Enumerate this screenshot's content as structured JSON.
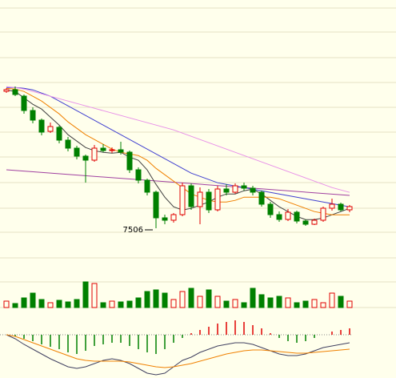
{
  "chart_data": [
    {
      "type": "candlestick",
      "ylim": [
        7431,
        8931
      ],
      "up_color": "#e00000",
      "down_color": "#008000",
      "open": [
        8361,
        8371,
        8331,
        8241,
        8181,
        8111,
        8136,
        8056,
        8006,
        7956,
        7931,
        8006,
        7991,
        7996,
        7981,
        7871,
        7806,
        7731,
        7571,
        7556,
        7591,
        7771,
        7641,
        7731,
        7621,
        7751,
        7731,
        7771,
        7756,
        7731,
        7656,
        7591,
        7561,
        7606,
        7551,
        7531,
        7556,
        7631,
        7656,
        7621
      ],
      "high": [
        8381,
        8391,
        8341,
        8261,
        8191,
        8166,
        8146,
        8076,
        8021,
        7966,
        8026,
        8031,
        8011,
        8046,
        7991,
        7886,
        7816,
        7741,
        7591,
        7601,
        7791,
        7786,
        7761,
        7751,
        7771,
        7781,
        7786,
        7791,
        7771,
        7741,
        7671,
        7611,
        7626,
        7616,
        7561,
        7566,
        7641,
        7691,
        7666,
        7651
      ],
      "low": [
        8351,
        8331,
        8221,
        8161,
        8086,
        8101,
        8036,
        7986,
        7936,
        7791,
        7921,
        7981,
        7976,
        7966,
        7851,
        7786,
        7711,
        7506,
        7531,
        7541,
        7581,
        7621,
        7531,
        7601,
        7611,
        7711,
        7721,
        7741,
        7711,
        7641,
        7571,
        7546,
        7551,
        7536,
        7521,
        7526,
        7546,
        7616,
        7611,
        7606
      ],
      "close": [
        8371,
        8341,
        8241,
        8181,
        8106,
        8141,
        8056,
        8006,
        7956,
        7931,
        8006,
        7991,
        7996,
        7981,
        7871,
        7806,
        7731,
        7571,
        7556,
        7591,
        7771,
        7641,
        7731,
        7621,
        7751,
        7731,
        7771,
        7756,
        7731,
        7656,
        7591,
        7561,
        7606,
        7551,
        7531,
        7556,
        7631,
        7656,
        7621,
        7641
      ],
      "lines": [
        {
          "color": "#404040",
          "values": [
            8370,
            8360,
            8320,
            8280,
            8250,
            8200,
            8150,
            8090,
            8050,
            8010,
            7990,
            7980,
            7975,
            7980,
            7950,
            7930,
            7870,
            7780,
            7700,
            7640,
            7620,
            7630,
            7650,
            7670,
            7700,
            7720,
            7720,
            7740,
            7750,
            7720,
            7680,
            7640,
            7610,
            7580,
            7560,
            7560,
            7570,
            7590,
            7610,
            7630
          ]
        },
        {
          "color": "#f08000",
          "values": [
            8380,
            8375,
            8360,
            8330,
            8300,
            8260,
            8220,
            8170,
            8130,
            8090,
            8060,
            8030,
            8000,
            7980,
            7970,
            7960,
            7930,
            7880,
            7840,
            7800,
            7760,
            7720,
            7700,
            7680,
            7670,
            7670,
            7680,
            7700,
            7700,
            7700,
            7700,
            7690,
            7670,
            7650,
            7630,
            7610,
            7600,
            7590,
            7590,
            7590
          ]
        },
        {
          "color": "#4040d0",
          "values": [
            8385,
            8385,
            8380,
            8370,
            8350,
            8330,
            8300,
            8270,
            8240,
            8210,
            8180,
            8150,
            8120,
            8090,
            8060,
            8030,
            8000,
            7970,
            7940,
            7910,
            7880,
            7850,
            7830,
            7810,
            7790,
            7780,
            7770,
            7760,
            7750,
            7740,
            7730,
            7720,
            7710,
            7700,
            7690,
            7680,
            7670,
            7660,
            7650,
            7640
          ]
        },
        {
          "color": "#e890e8",
          "values": [
            8390,
            8385,
            8375,
            8360,
            8345,
            8330,
            8315,
            8300,
            8285,
            8270,
            8255,
            8240,
            8225,
            8210,
            8195,
            8180,
            8165,
            8150,
            8135,
            8120,
            8100,
            8080,
            8060,
            8040,
            8020,
            8000,
            7980,
            7960,
            7940,
            7920,
            7900,
            7880,
            7860,
            7840,
            7820,
            7800,
            7780,
            7760,
            7745,
            7730
          ]
        }
      ],
      "trend_line": {
        "color": "#a040a0",
        "values": [
          7871,
          7711
        ]
      },
      "annotation": "7506"
    },
    {
      "type": "volume",
      "ylim": [
        0,
        40
      ],
      "values": [
        8,
        5,
        12,
        18,
        10,
        6,
        9,
        7,
        10,
        32,
        30,
        6,
        8,
        7,
        8,
        12,
        20,
        22,
        18,
        10,
        20,
        24,
        14,
        22,
        14,
        8,
        10,
        6,
        24,
        16,
        12,
        14,
        12,
        6,
        8,
        10,
        6,
        18,
        14,
        8
      ]
    },
    {
      "type": "macd",
      "ylim": [
        -54,
        23
      ],
      "up_color": "#e00000",
      "down_color": "#008000",
      "histogram": [
        0,
        -2,
        -5,
        -8,
        -12,
        -15,
        -18,
        -22,
        -24,
        -20,
        -14,
        -12,
        -10,
        -10,
        -14,
        -18,
        -22,
        -24,
        -18,
        -10,
        -4,
        2,
        6,
        10,
        14,
        16,
        18,
        16,
        12,
        8,
        2,
        -4,
        -8,
        -10,
        -8,
        -4,
        0,
        4,
        6,
        8
      ],
      "lines": [
        {
          "color": "#404060",
          "values": [
            0,
            -5,
            -12,
            -18,
            -24,
            -30,
            -35,
            -40,
            -42,
            -40,
            -36,
            -32,
            -30,
            -32,
            -36,
            -42,
            -48,
            -50,
            -48,
            -40,
            -32,
            -28,
            -22,
            -18,
            -14,
            -12,
            -10,
            -10,
            -12,
            -16,
            -20,
            -24,
            -26,
            -26,
            -24,
            -20,
            -16,
            -14,
            -12,
            -10
          ]
        },
        {
          "color": "#f08000",
          "values": [
            0,
            -2,
            -6,
            -10,
            -14,
            -18,
            -22,
            -26,
            -30,
            -32,
            -33,
            -33,
            -33,
            -33,
            -34,
            -36,
            -38,
            -40,
            -41,
            -40,
            -38,
            -36,
            -33,
            -30,
            -27,
            -24,
            -22,
            -20,
            -19,
            -19,
            -20,
            -21,
            -22,
            -23,
            -23,
            -22,
            -21,
            -20,
            -19,
            -18
          ]
        }
      ]
    }
  ]
}
